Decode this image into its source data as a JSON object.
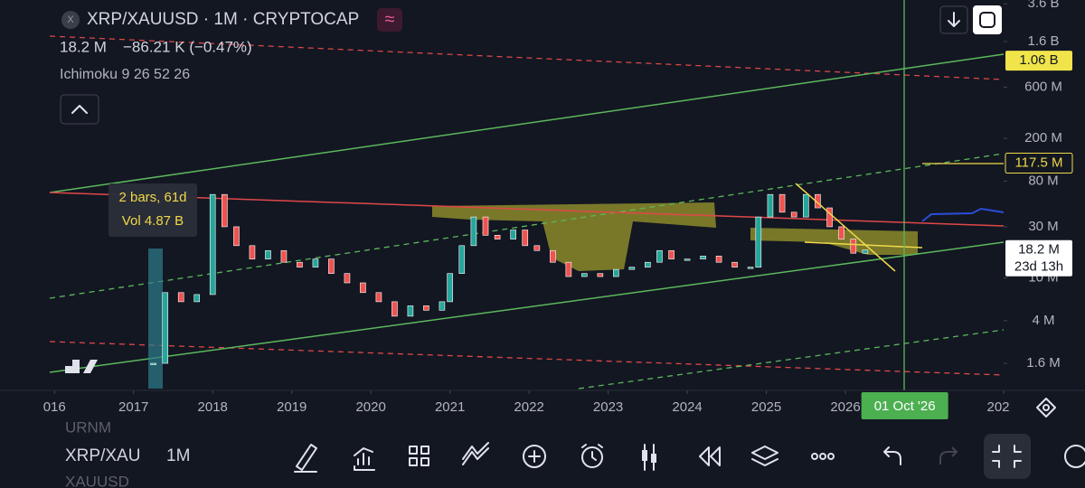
{
  "header": {
    "symbol": "XRP/XAUUSD · 1M · CRYPTOCAP",
    "price": "18.2 M",
    "change": "−86.21 K (−0.47%)",
    "indicator": "Ichimoku 9 26 52 26"
  },
  "chart_data": {
    "type": "candlestick",
    "x": [
      2017.25,
      2017.4,
      2017.6,
      2017.8,
      2018.0,
      2018.15,
      2018.3,
      2018.5,
      2018.7,
      2018.9,
      2019.1,
      2019.3,
      2019.5,
      2019.7,
      2019.9,
      2020.1,
      2020.3,
      2020.5,
      2020.7,
      2020.9,
      2021.0,
      2021.15,
      2021.3,
      2021.45,
      2021.6,
      2021.8,
      2021.95,
      2022.1,
      2022.3,
      2022.5,
      2022.7,
      2022.9,
      2023.1,
      2023.3,
      2023.5,
      2023.65,
      2023.8,
      2024.0,
      2024.2,
      2024.4,
      2024.6,
      2024.8,
      2024.9,
      2025.05,
      2025.2,
      2025.35,
      2025.5,
      2025.65,
      2025.8,
      2025.95,
      2026.1,
      2026.25
    ],
    "values": [
      1.6,
      7.3,
      6,
      7,
      60,
      30,
      20,
      15,
      18,
      14,
      12.6,
      15,
      11,
      9,
      7.3,
      6,
      4.4,
      5.5,
      5,
      6,
      11,
      20,
      37,
      25,
      23,
      28,
      20,
      18,
      14,
      10.3,
      11,
      10.3,
      12,
      12.6,
      14,
      18,
      15,
      15,
      16,
      14,
      12.6,
      12.6,
      37,
      60,
      41,
      37,
      60,
      45,
      30,
      23,
      17,
      18.2
    ],
    "up_color": "#26a69a",
    "down_color": "#ef5350",
    "log_scale": true,
    "ylim": [
      0.93,
      3900
    ],
    "yticks": [
      {
        "value": 1.6,
        "label": "1.6 M"
      },
      {
        "value": 4,
        "label": "4 M"
      },
      {
        "value": 10,
        "label": "10 M"
      },
      {
        "value": 30,
        "label": "30 M"
      },
      {
        "value": 80,
        "label": "80 M"
      },
      {
        "value": 200,
        "label": "200 M"
      },
      {
        "value": 600,
        "label": "600 M"
      },
      {
        "value": 1600,
        "label": "1.6 B"
      },
      {
        "value": 3600,
        "label": "3.6 B"
      }
    ],
    "xlim": [
      2015.94,
      2028.0
    ],
    "xticks": [
      {
        "value": 2016,
        "label": "016"
      },
      2017,
      2018,
      2019,
      2020,
      2021,
      2022,
      2023,
      2024,
      2025,
      2026,
      {
        "value": 2028,
        "label": "202"
      }
    ]
  },
  "measure": {
    "bars": "2 bars, 61d",
    "volume": "Vol 4.87 B"
  },
  "price_labels": [
    {
      "value": 1060,
      "label": "1.06 B"
    },
    {
      "value": 117.5,
      "label": "117.5 M"
    },
    {
      "value": 18.2,
      "label": "18.2 M",
      "countdown": "23d 13h"
    }
  ],
  "crosshair": {
    "value": 2026.75,
    "label": "01 Oct '26"
  },
  "bottom_bar": {
    "watchlist": [
      "URNM",
      "XRP/XAU",
      "XAUUSD"
    ],
    "interval": "1M"
  }
}
